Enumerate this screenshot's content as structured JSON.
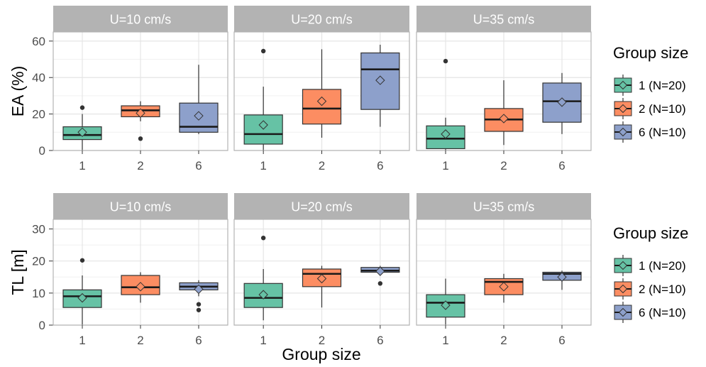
{
  "colors": {
    "group_1": "#66c2a5",
    "group_2": "#fc8d62",
    "group_6": "#8da0cb",
    "strip": "#b3b3b3",
    "strip_text": "#ffffff",
    "grid": "#e5e5e5",
    "panel_border": "#b3b3b3",
    "axis_text": "#4d4d4d",
    "title_text": "#000000"
  },
  "shared_xlabel": "Group size",
  "legend": {
    "title": "Group size",
    "entries": [
      "1 (N=20)",
      "2 (N=10)",
      "6 (N=10)"
    ]
  },
  "chart_data": [
    {
      "type": "boxplot",
      "ylabel": "EA (%)",
      "ylim": [
        0,
        65
      ],
      "yticks": [
        0,
        20,
        40,
        60
      ],
      "categories": [
        "1",
        "2",
        "6"
      ],
      "facets": [
        {
          "title": "U=10 cm/s",
          "boxes": [
            {
              "category": "1",
              "min": 0,
              "q1": 6,
              "median": 8.5,
              "q3": 13,
              "max": 20,
              "mean": 10,
              "outliers": [
                23.5
              ]
            },
            {
              "category": "2",
              "min": 16,
              "q1": 18.5,
              "median": 22,
              "q3": 24.5,
              "max": 27,
              "mean": 20.5,
              "outliers": [
                6.5
              ]
            },
            {
              "category": "6",
              "min": 9,
              "q1": 10,
              "median": 13,
              "q3": 26,
              "max": 47,
              "mean": 19,
              "outliers": []
            }
          ]
        },
        {
          "title": "U=20 cm/s",
          "boxes": [
            {
              "category": "1",
              "min": 0,
              "q1": 3.5,
              "median": 9,
              "q3": 19.5,
              "max": 35,
              "mean": 14,
              "outliers": [
                54.5
              ]
            },
            {
              "category": "2",
              "min": 7,
              "q1": 14.5,
              "median": 23,
              "q3": 33.5,
              "max": 55.5,
              "mean": 27,
              "outliers": []
            },
            {
              "category": "6",
              "min": 13,
              "q1": 22.5,
              "median": 44.5,
              "q3": 53.5,
              "max": 58,
              "mean": 38.5,
              "outliers": []
            }
          ]
        },
        {
          "title": "U=35 cm/s",
          "boxes": [
            {
              "category": "1",
              "min": 0,
              "q1": 1,
              "median": 6.5,
              "q3": 13.5,
              "max": 18,
              "mean": 9,
              "outliers": [
                49
              ]
            },
            {
              "category": "2",
              "min": 3,
              "q1": 10.5,
              "median": 17,
              "q3": 23,
              "max": 38.5,
              "mean": 17.5,
              "outliers": []
            },
            {
              "category": "6",
              "min": 9,
              "q1": 15.5,
              "median": 27,
              "q3": 37,
              "max": 42.5,
              "mean": 26.5,
              "outliers": []
            }
          ]
        }
      ]
    },
    {
      "type": "boxplot",
      "ylabel": "TL [m]",
      "ylim": [
        0,
        33
      ],
      "yticks": [
        0,
        10,
        20,
        30
      ],
      "categories": [
        "1",
        "2",
        "6"
      ],
      "facets": [
        {
          "title": "U=10 cm/s",
          "boxes": [
            {
              "category": "1",
              "min": 0,
              "q1": 5.5,
              "median": 9,
              "q3": 11,
              "max": 15.5,
              "mean": 8.5,
              "outliers": [
                20.2
              ]
            },
            {
              "category": "2",
              "min": 7,
              "q1": 9.5,
              "median": 11.8,
              "q3": 15.5,
              "max": 16.5,
              "mean": 12,
              "outliers": []
            },
            {
              "category": "6",
              "min": 9,
              "q1": 11,
              "median": 12,
              "q3": 13.2,
              "max": 14,
              "mean": 11.2,
              "outliers": [
                6.5,
                4.7
              ]
            }
          ]
        },
        {
          "title": "U=20 cm/s",
          "boxes": [
            {
              "category": "1",
              "min": 1.5,
              "q1": 5.5,
              "median": 8.5,
              "q3": 13,
              "max": 17.5,
              "mean": 9.5,
              "outliers": [
                27.2
              ]
            },
            {
              "category": "2",
              "min": 5.5,
              "q1": 12,
              "median": 16,
              "q3": 17.5,
              "max": 18.5,
              "mean": 14.5,
              "outliers": []
            },
            {
              "category": "6",
              "min": 16,
              "q1": 16.5,
              "median": 17,
              "q3": 18,
              "max": 18.5,
              "mean": 16.8,
              "outliers": [
                13
              ]
            }
          ]
        },
        {
          "title": "U=35 cm/s",
          "boxes": [
            {
              "category": "1",
              "min": 0,
              "q1": 2.5,
              "median": 7,
              "q3": 9.5,
              "max": 14.5,
              "mean": 6.2,
              "outliers": []
            },
            {
              "category": "2",
              "min": 7,
              "q1": 9.5,
              "median": 13.5,
              "q3": 14.5,
              "max": 16,
              "mean": 12,
              "outliers": []
            },
            {
              "category": "6",
              "min": 11,
              "q1": 14,
              "median": 16,
              "q3": 16.5,
              "max": 17,
              "mean": 15,
              "outliers": []
            }
          ]
        }
      ]
    }
  ]
}
